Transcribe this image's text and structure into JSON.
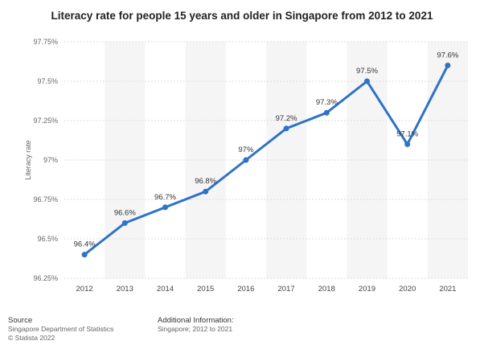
{
  "title": "Literacy rate for people 15 years and older in Singapore from 2012 to 2021",
  "footer": {
    "source_label": "Source",
    "source_line1": "Singapore Department of Statistics",
    "source_line2": "© Statista 2022",
    "info_label": "Additional Information:",
    "info_line": "Singapore; 2012 to 2021"
  },
  "colors": {
    "line": "#2f72c6",
    "band": "#f5f5f5",
    "grid": "#dddddd"
  },
  "chart_data": {
    "type": "line",
    "title": "Literacy rate for people 15 years and older in Singapore from 2012 to 2021",
    "xlabel": "",
    "ylabel": "Literacy rate",
    "categories": [
      "2012",
      "2013",
      "2014",
      "2015",
      "2016",
      "2017",
      "2018",
      "2019",
      "2020",
      "2021"
    ],
    "series": [
      {
        "values": [
          96.4,
          96.6,
          96.7,
          96.8,
          97.0,
          97.2,
          97.3,
          97.5,
          97.1,
          97.6
        ],
        "labels": [
          "96.4%",
          "96.6%",
          "96.7%",
          "96.8%",
          "97%",
          "97.2%",
          "97.3%",
          "97.5%",
          "97.1%",
          "97.6%"
        ]
      }
    ],
    "ylim": [
      96.25,
      97.75
    ],
    "yticks": [
      96.25,
      96.5,
      96.75,
      97.0,
      97.25,
      97.5,
      97.75
    ],
    "ytick_labels": [
      "96.25%",
      "96.5%",
      "96.75%",
      "97%",
      "97.25%",
      "97.5%",
      "97.75%"
    ],
    "grid": true,
    "legend": "none"
  }
}
